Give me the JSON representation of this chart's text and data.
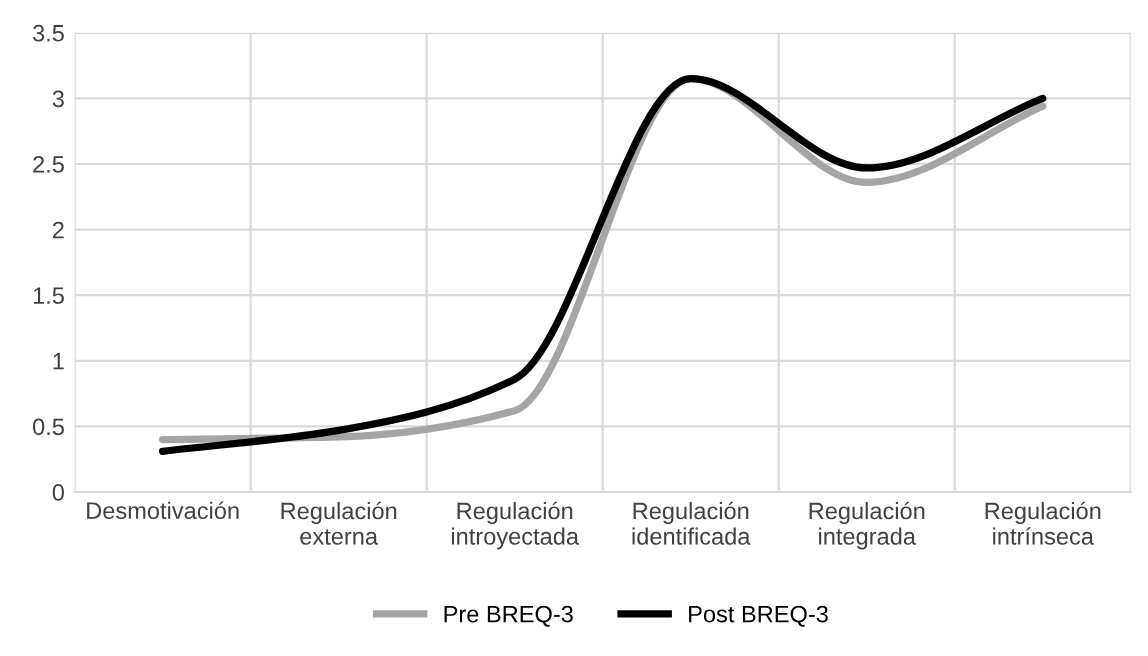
{
  "chart_data": {
    "type": "line",
    "categories": [
      "Desmotivación",
      "Regulación\nexterna",
      "Regulación\nintroyectada",
      "Regulación\nidentificada",
      "Regulación\nintegrada",
      "Regulación\nintrínseca"
    ],
    "series": [
      {
        "name": "Pre BREQ-3",
        "color": "#a5a5a5",
        "values": [
          0.4,
          0.42,
          0.62,
          3.15,
          2.36,
          2.94
        ]
      },
      {
        "name": "Post BREQ-3",
        "color": "#000000",
        "values": [
          0.31,
          0.47,
          0.86,
          3.15,
          2.47,
          3.0
        ]
      }
    ],
    "ylim": [
      0,
      3.5
    ],
    "yticks": [
      0,
      0.5,
      1,
      1.5,
      2,
      2.5,
      3,
      3.5
    ],
    "grid": true,
    "legend": "bottom",
    "marker": "none",
    "line_style": "solid"
  }
}
